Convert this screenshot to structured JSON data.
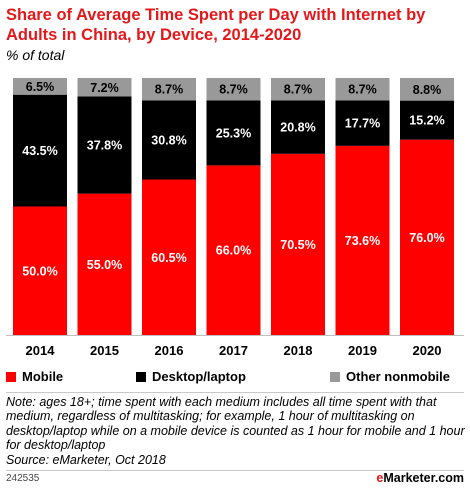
{
  "title": "Share of Average Time Spent per Day with Internet by Adults in China, by Device, 2014-2020",
  "subtitle": "% of total",
  "colors": {
    "mobile": "#ff0000",
    "desktop": "#000000",
    "other": "#999999",
    "title": "#e4181b"
  },
  "chart_data": {
    "type": "bar",
    "stacked": true,
    "categories": [
      "2014",
      "2015",
      "2016",
      "2017",
      "2018",
      "2019",
      "2020"
    ],
    "series": [
      {
        "name": "Mobile",
        "values": [
          50.0,
          55.0,
          60.5,
          66.0,
          70.5,
          73.6,
          76.0
        ],
        "color": "#ff0000"
      },
      {
        "name": "Desktop/laptop",
        "values": [
          43.5,
          37.8,
          30.8,
          25.3,
          20.8,
          17.7,
          15.2
        ],
        "color": "#000000"
      },
      {
        "name": "Other nonmobile",
        "values": [
          6.5,
          7.2,
          8.7,
          8.7,
          8.7,
          8.7,
          8.8
        ],
        "color": "#999999"
      }
    ],
    "value_format": "0.0%",
    "legend_position": "bottom",
    "grid": false,
    "ylim": [
      0,
      100
    ]
  },
  "note": "Note: ages 18+; time spent with each medium includes all time spent with that medium, regardless of multitasking; for example, 1 hour of multitasking on desktop/laptop while on a mobile device is counted as 1 hour for mobile and 1 hour for desktop/laptop",
  "source": "Source: eMarketer, Oct 2018",
  "chart_id": "242535",
  "brand": {
    "prefix": "e",
    "name": "Marketer",
    "suffix": ".com"
  }
}
